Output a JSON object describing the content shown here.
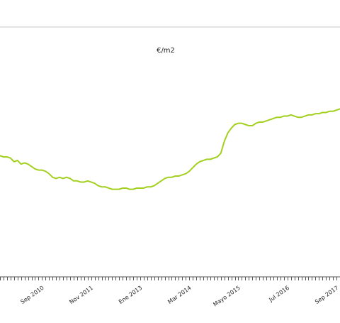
{
  "chart_data": {
    "type": "line",
    "title": "",
    "ylabel": "€/m2",
    "xlabel": "",
    "grid": false,
    "legend": "none",
    "line_color": "#a3cf1e",
    "frame_color": "#e3e3e3",
    "axis_color": "#555555",
    "x_range": [
      "2009-09",
      "2017-10"
    ],
    "tick_labels": [
      "Sep 2010",
      "Nov 2011",
      "Ene 2013",
      "Mar 2014",
      "Mayo 2015",
      "Jul 2016",
      "Sep 2017"
    ],
    "tick_dates": [
      "2010-09",
      "2011-11",
      "2013-01",
      "2014-03",
      "2015-05",
      "2016-07",
      "2017-09"
    ],
    "series": [
      {
        "name": "",
        "x": [
          "2009-09",
          "2009-10",
          "2009-11",
          "2009-12",
          "2010-01",
          "2010-02",
          "2010-03",
          "2010-04",
          "2010-05",
          "2010-06",
          "2010-07",
          "2010-08",
          "2010-09",
          "2010-10",
          "2010-11",
          "2010-12",
          "2011-01",
          "2011-02",
          "2011-03",
          "2011-04",
          "2011-05",
          "2011-06",
          "2011-07",
          "2011-08",
          "2011-09",
          "2011-10",
          "2011-11",
          "2011-12",
          "2012-01",
          "2012-02",
          "2012-03",
          "2012-04",
          "2012-05",
          "2012-06",
          "2012-07",
          "2012-08",
          "2012-09",
          "2012-10",
          "2012-11",
          "2012-12",
          "2013-01",
          "2013-02",
          "2013-03",
          "2013-04",
          "2013-05",
          "2013-06",
          "2013-07",
          "2013-08",
          "2013-09",
          "2013-10",
          "2013-11",
          "2013-12",
          "2014-01",
          "2014-02",
          "2014-03",
          "2014-04",
          "2014-05",
          "2014-06",
          "2014-07",
          "2014-08",
          "2014-09",
          "2014-10",
          "2014-11",
          "2014-12",
          "2015-01",
          "2015-02",
          "2015-03",
          "2015-04",
          "2015-05",
          "2015-06",
          "2015-07",
          "2015-08",
          "2015-09",
          "2015-10",
          "2015-11",
          "2015-12",
          "2016-01",
          "2016-02",
          "2016-03",
          "2016-04",
          "2016-05",
          "2016-06",
          "2016-07",
          "2016-08",
          "2016-09",
          "2016-10",
          "2016-11",
          "2016-12",
          "2017-01",
          "2017-02",
          "2017-03",
          "2017-04",
          "2017-05",
          "2017-06",
          "2017-07",
          "2017-08",
          "2017-09",
          "2017-10"
        ],
        "values": [
          101,
          100,
          100,
          99,
          96,
          97,
          94,
          95,
          94,
          92,
          90,
          89,
          89,
          88,
          86,
          83,
          82,
          83,
          82,
          83,
          82,
          80,
          80,
          79,
          79,
          80,
          79,
          78,
          76,
          75,
          75,
          74,
          73,
          73,
          73,
          74,
          74,
          73,
          73,
          74,
          74,
          74,
          75,
          75,
          76,
          78,
          80,
          82,
          83,
          83,
          84,
          84,
          85,
          86,
          88,
          91,
          94,
          96,
          97,
          98,
          98,
          99,
          100,
          103,
          113,
          120,
          124,
          127,
          128,
          128,
          127,
          126,
          126,
          128,
          129,
          129,
          130,
          131,
          132,
          133,
          133,
          134,
          134,
          135,
          134,
          133,
          133,
          134,
          135,
          135,
          136,
          136,
          137,
          137,
          138,
          138,
          139,
          140
        ]
      }
    ],
    "ylim": [
      0,
      200
    ]
  }
}
